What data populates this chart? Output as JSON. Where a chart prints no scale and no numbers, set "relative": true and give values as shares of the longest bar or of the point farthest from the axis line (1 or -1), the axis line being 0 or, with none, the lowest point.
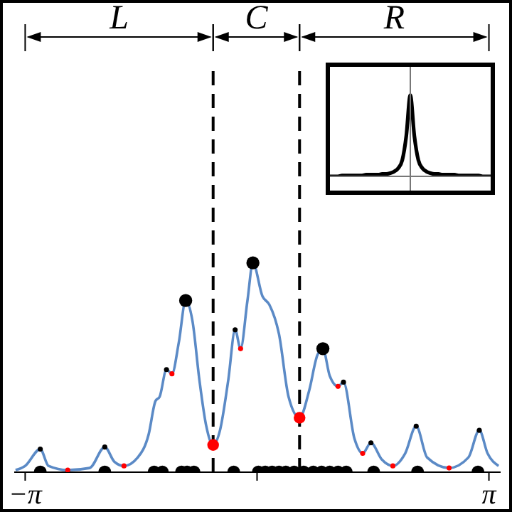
{
  "chart_data": [
    {
      "type": "line",
      "relative": true,
      "xlim": [
        -3.29,
        3.3
      ],
      "xticks": [
        {
          "value": -3.1416,
          "label": "−π"
        },
        {
          "value": 0,
          "label": null
        },
        {
          "value": 3.1416,
          "label": "π"
        }
      ],
      "series": [
        {
          "type": "line",
          "color": "#5b8ac6",
          "x": [
            -3.272,
            -3.142,
            -2.937,
            -2.826,
            -2.565,
            -2.268,
            -2.063,
            -1.933,
            -1.803,
            -1.617,
            -1.469,
            -1.376,
            -1.32,
            -1.227,
            -1.153,
            -1.06,
            -0.967,
            -0.874,
            -0.781,
            -0.688,
            -0.595,
            -0.502,
            -0.39,
            -0.297,
            -0.223,
            -0.13,
            -0.056,
            0.074,
            0.167,
            0.297,
            0.427,
            0.576,
            0.706,
            0.818,
            0.892,
            0.985,
            1.097,
            1.171,
            1.32,
            1.431,
            1.543,
            1.691,
            1.84,
            2.007,
            2.156,
            2.305,
            2.602,
            2.863,
            3.011,
            3.123,
            3.272
          ],
          "values": [
            0.01,
            0.03,
            0.11,
            0.03,
            0.01,
            0.02,
            0.12,
            0.05,
            0.03,
            0.07,
            0.18,
            0.34,
            0.36,
            0.49,
            0.47,
            0.62,
            0.82,
            0.72,
            0.44,
            0.22,
            0.13,
            0.2,
            0.44,
            0.68,
            0.59,
            0.82,
            1,
            0.84,
            0.8,
            0.66,
            0.36,
            0.26,
            0.39,
            0.56,
            0.59,
            0.46,
            0.41,
            0.43,
            0.16,
            0.09,
            0.14,
            0.06,
            0.03,
            0.09,
            0.22,
            0.07,
            0.02,
            0.07,
            0.2,
            0.09,
            0.03
          ]
        },
        {
          "type": "bubble",
          "color": "#000000",
          "x": [
            -0.967,
            -0.056,
            0.892,
            -2.937,
            -2.063,
            -1.227,
            -0.297,
            1.171,
            1.543,
            2.156,
            3.011,
            -2.937,
            -2.063,
            -1.394,
            -1.283,
            -1.023,
            -0.948,
            -0.855,
            -0.316,
            0.018,
            0.111,
            0.204,
            0.297,
            0.39,
            0.502,
            0.632,
            0.762,
            0.874,
            0.985,
            1.097,
            1.208,
            1.58,
            2.175,
            2.993
          ],
          "values": [
            0.82,
            1,
            0.59,
            0.11,
            0.12,
            0.49,
            0.68,
            0.43,
            0.14,
            0.22,
            0.2,
            0,
            0,
            0,
            0,
            0,
            0,
            0,
            0,
            0,
            0,
            0,
            0,
            0,
            0,
            0,
            0,
            0,
            0,
            0,
            0,
            0,
            0,
            0
          ],
          "sizes": [
            1,
            1,
            1,
            0.15,
            0.15,
            0.15,
            0.15,
            0.15,
            0.15,
            0.15,
            0.15,
            1,
            1,
            1,
            1,
            1,
            1,
            1,
            1,
            1,
            1,
            1,
            1,
            1,
            1,
            1,
            1,
            1,
            1,
            1,
            1,
            1,
            1,
            1
          ]
        },
        {
          "type": "bubble",
          "color": "#ff0000",
          "x": [
            -0.595,
            0.576,
            -2.565,
            -1.803,
            -1.153,
            -0.223,
            1.097,
            1.431,
            1.84,
            2.602
          ],
          "values": [
            0.13,
            0.26,
            0.01,
            0.03,
            0.47,
            0.59,
            0.41,
            0.09,
            0.03,
            0.02
          ],
          "sizes": [
            0.8,
            0.8,
            0.15,
            0.15,
            0.15,
            0.15,
            0.15,
            0.15,
            0.15,
            0.15
          ]
        }
      ],
      "ref_lines": [
        {
          "axis": "x",
          "value": -0.595,
          "line_style": "dashed"
        },
        {
          "axis": "x",
          "value": 0.576,
          "line_style": "dashed"
        }
      ],
      "annotations": [
        "L",
        "C",
        "R"
      ]
    },
    {
      "type": "line",
      "relative": true,
      "categories": [
        null,
        null,
        null,
        null,
        null,
        null,
        null,
        null,
        null,
        null,
        null,
        null,
        null,
        null,
        null,
        null,
        null,
        null,
        null,
        null,
        null,
        null,
        null,
        null,
        null,
        null,
        null,
        null,
        null,
        null,
        null,
        null,
        null,
        null,
        null,
        null,
        null,
        null,
        null,
        null,
        null
      ],
      "series": [
        {
          "color": "#000000",
          "values": [
            0,
            0,
            0,
            0.01,
            0.01,
            0.01,
            0.01,
            0.01,
            0.01,
            0.02,
            0.02,
            0.02,
            0.02,
            0.03,
            0.03,
            0.04,
            0.06,
            0.1,
            0.2,
            0.5,
            1,
            0.5,
            0.2,
            0.1,
            0.06,
            0.04,
            0.03,
            0.03,
            0.02,
            0.02,
            0.02,
            0.02,
            0.01,
            0.01,
            0.01,
            0.01,
            0.01,
            0.01,
            0,
            0,
            0
          ]
        }
      ]
    }
  ]
}
